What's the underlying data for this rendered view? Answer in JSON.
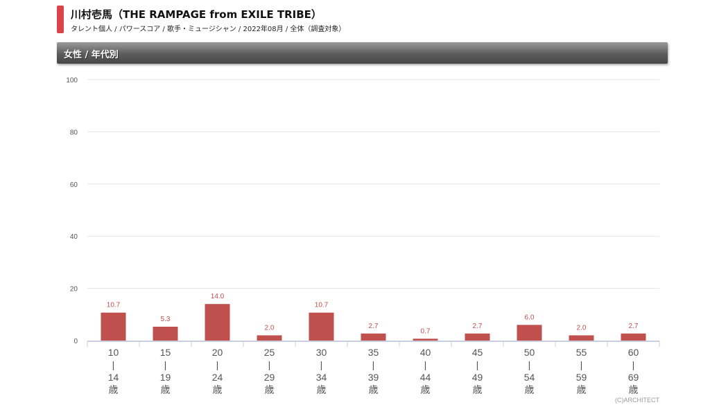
{
  "header": {
    "title": "川村壱馬（THE RAMPAGE from EXILE TRIBE）",
    "subtitle": "タレント個人 / パワースコア / 歌手・ミュージシャン / 2022年08月 / 全体（調査対象）",
    "section": "女性 / 年代別",
    "copyright": "(C)ARCHITECT"
  },
  "colors": {
    "bar": "#c0504d",
    "label": "#c0504d",
    "accent": "#d9434a"
  },
  "chart_data": {
    "type": "bar",
    "categories": [
      "10\n|\n14\n歳",
      "15\n|\n19\n歳",
      "20\n|\n24\n歳",
      "25\n|\n29\n歳",
      "30\n|\n34\n歳",
      "35\n|\n39\n歳",
      "40\n|\n44\n歳",
      "45\n|\n49\n歳",
      "50\n|\n54\n歳",
      "55\n|\n59\n歳",
      "60\n|\n69\n歳"
    ],
    "values": [
      10.7,
      5.3,
      14.0,
      2.0,
      10.7,
      2.7,
      0.7,
      2.7,
      6.0,
      2.0,
      2.7
    ],
    "data_labels": [
      "10.7",
      "5.3",
      "14.0",
      "2.0",
      "10.7",
      "2.7",
      "0.7",
      "2.7",
      "6.0",
      "2.0",
      "2.7"
    ],
    "yticks": [
      0,
      20,
      40,
      60,
      80,
      100
    ],
    "ylim": [
      0,
      100
    ],
    "grid": true,
    "legend": "none"
  }
}
